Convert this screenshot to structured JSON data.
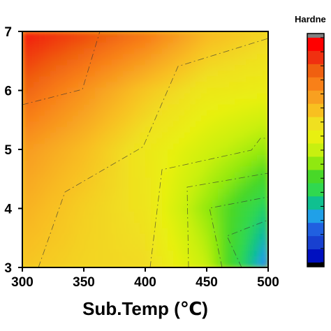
{
  "chart_data": {
    "type": "contour",
    "xlabel": "Sub.Temp (℃)",
    "ylabel": "",
    "xlim": [
      300,
      500
    ],
    "ylim": [
      3,
      7
    ],
    "x_ticks": [
      300,
      350,
      400,
      450,
      500
    ],
    "y_ticks": [
      3,
      4,
      5,
      6,
      7
    ],
    "colorbar": {
      "title": "Hardne",
      "colors_top_to_bottom": [
        "#808080",
        "#ff0000",
        "#f03010",
        "#f06010",
        "#f88018",
        "#f8a020",
        "#f8c020",
        "#f0e020",
        "#e8f010",
        "#c8f010",
        "#90e810",
        "#48d828",
        "#30d850",
        "#10c090",
        "#20a0e8",
        "#2060e0",
        "#1840d0",
        "#0010c0",
        "#000000"
      ]
    },
    "z_grid": {
      "x": [
        300,
        350,
        400,
        450,
        500
      ],
      "y": [
        3,
        4,
        5,
        6,
        7
      ],
      "z": [
        [
          11.5,
          11.0,
          10.8,
          8.5,
          2.5
        ],
        [
          12.2,
          11.2,
          10.4,
          7.5,
          4.8
        ],
        [
          13.0,
          11.8,
          10.2,
          8.8,
          7.5
        ],
        [
          14.8,
          13.2,
          11.5,
          10.2,
          9.8
        ],
        [
          16.5,
          15.5,
          14.2,
          12.0,
          11.0
        ]
      ]
    },
    "z_range": [
      0,
      17
    ]
  }
}
